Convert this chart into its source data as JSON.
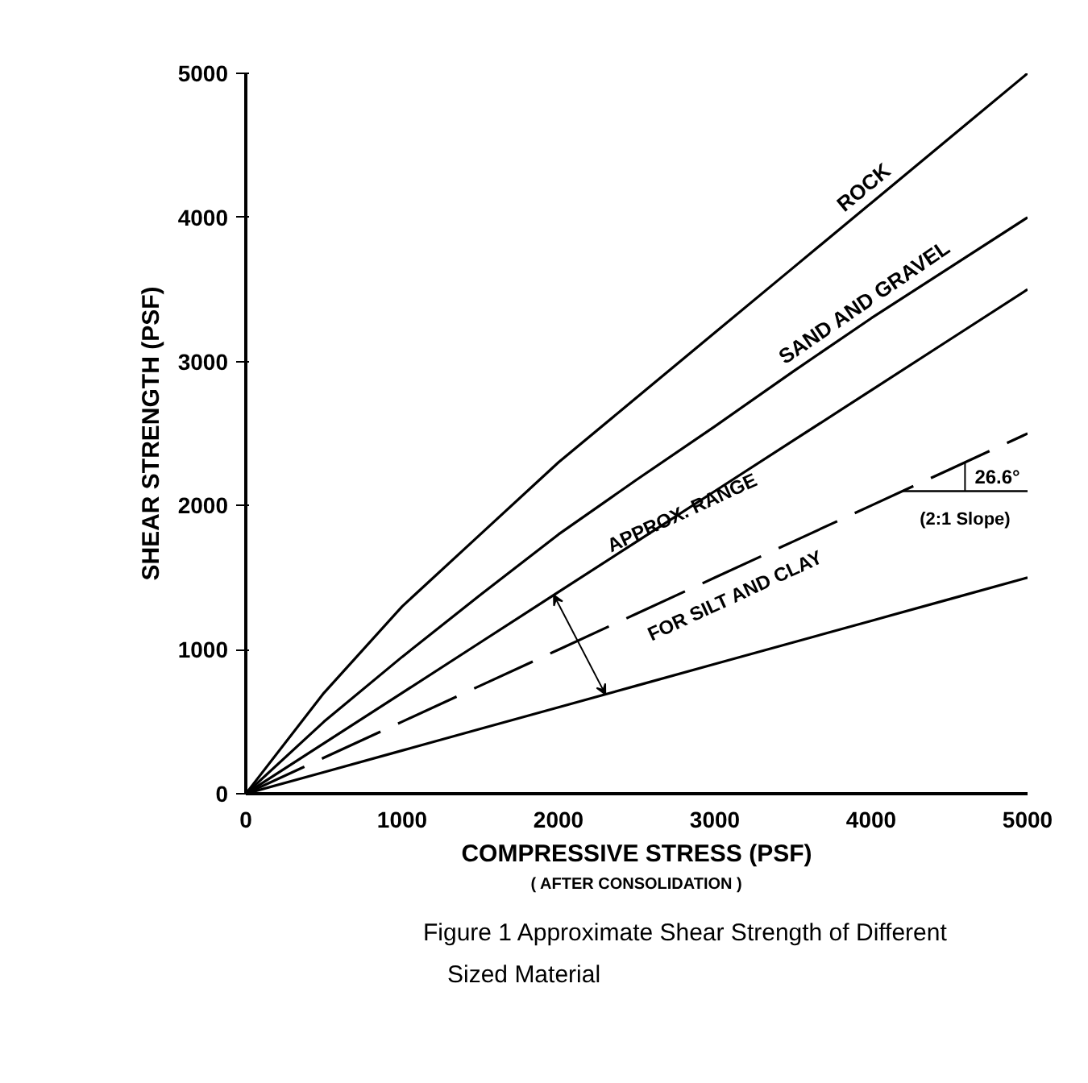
{
  "chart_data": {
    "type": "line",
    "title": "Figure 1 Approximate Shear Strength of Different Sized Material",
    "xlabel": "COMPRESSIVE STRESS (PSF)",
    "ylabel": "SHEAR STRENGTH (PSF)",
    "x": [
      0,
      500,
      1000,
      1500,
      2000,
      2500,
      3000,
      3500,
      4000,
      4500,
      5000
    ],
    "series": [
      {
        "name": "ROCK",
        "color": "#000000",
        "values": [
          0,
          700,
          1300,
          1800,
          2300,
          2750,
          3200,
          3650,
          4100,
          4550,
          5000
        ]
      },
      {
        "name": "SAND AND GRAVEL",
        "color": "#000000",
        "values": [
          0,
          500,
          950,
          1380,
          1800,
          2180,
          2550,
          2930,
          3300,
          3650,
          4000
        ]
      },
      {
        "color": "#000000",
        "values": [
          0,
          350,
          700,
          1050,
          1400,
          1750,
          2100,
          2450,
          2800,
          3150,
          3500
        ]
      },
      {
        "color": "#000000",
        "line_style": "dashed",
        "values": [
          0,
          250,
          500,
          750,
          1000,
          1250,
          1500,
          1750,
          2000,
          2250,
          2500
        ]
      },
      {
        "color": "#000000",
        "values": [
          0,
          150,
          300,
          450,
          600,
          750,
          900,
          1050,
          1200,
          1350,
          1500
        ]
      }
    ],
    "annotations": [
      "( AFTER CONSOLIDATION )",
      "APPROX. RANGE",
      "FOR SILT AND CLAY",
      {
        "text": "26.6°",
        "x": 4600,
        "y": 2300
      },
      "(2:1 Slope)"
    ],
    "xlim": [
      0,
      5000
    ],
    "ylim": [
      0,
      5000
    ],
    "xticks": [
      0,
      1000,
      2000,
      3000,
      4000,
      5000
    ],
    "yticks": [
      0,
      1000,
      2000,
      3000,
      4000,
      5000
    ],
    "grid": false
  }
}
